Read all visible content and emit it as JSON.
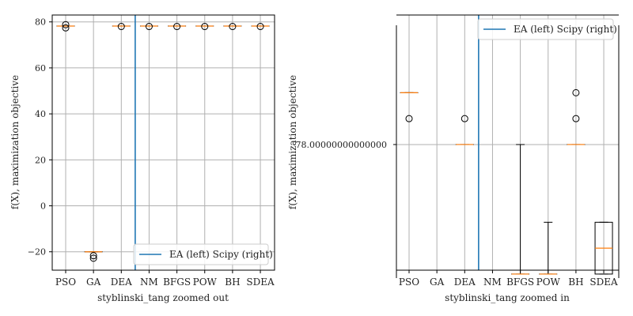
{
  "chart_data": [
    {
      "type": "box",
      "xlabel": "styblinski_tang zoomed out",
      "ylabel": "f(X), maximization objective",
      "ylim": [
        -28,
        83
      ],
      "yticks": [
        -20,
        0,
        20,
        40,
        60,
        80
      ],
      "ytick_labels": [
        "−20",
        "0",
        "20",
        "40",
        "60",
        "80"
      ],
      "grid": true,
      "legend": {
        "label": "EA (left) Scipy (right)",
        "position": "lower-right"
      },
      "divider_between": [
        "DEA",
        "NM"
      ],
      "categories": [
        "PSO",
        "GA",
        "DEA",
        "NM",
        "BFGS",
        "POW",
        "BH",
        "SDEA"
      ],
      "boxes": [
        {
          "name": "PSO",
          "median": 78.2,
          "q1": 78.2,
          "q3": 78.2,
          "whislo": 78.2,
          "whishi": 78.2,
          "fliers": [
            77.4,
            78.8
          ]
        },
        {
          "name": "GA",
          "median": -20.0,
          "q1": -20.0,
          "q3": -20.0,
          "whislo": -20.0,
          "whishi": -20.0,
          "fliers": [
            -21.7,
            -22.8
          ]
        },
        {
          "name": "DEA",
          "median": 78.2,
          "q1": 78.2,
          "q3": 78.2,
          "whislo": 78.2,
          "whishi": 78.2,
          "fliers": [
            78.0
          ]
        },
        {
          "name": "NM",
          "median": 78.2,
          "q1": 78.2,
          "q3": 78.2,
          "whislo": 78.2,
          "whishi": 78.2,
          "fliers": [
            78.0
          ]
        },
        {
          "name": "BFGS",
          "median": 78.2,
          "q1": 78.2,
          "q3": 78.2,
          "whislo": 78.2,
          "whishi": 78.2,
          "fliers": [
            78.0
          ]
        },
        {
          "name": "POW",
          "median": 78.2,
          "q1": 78.2,
          "q3": 78.2,
          "whislo": 78.2,
          "whishi": 78.2,
          "fliers": [
            78.0
          ]
        },
        {
          "name": "BH",
          "median": 78.2,
          "q1": 78.2,
          "q3": 78.2,
          "whislo": 78.2,
          "whishi": 78.2,
          "fliers": [
            78.0
          ]
        },
        {
          "name": "SDEA",
          "median": 78.2,
          "q1": 78.2,
          "q3": 78.2,
          "whislo": 78.2,
          "whishi": 78.2,
          "fliers": [
            78.0
          ]
        }
      ]
    },
    {
      "type": "box",
      "xlabel": "styblinski_tang zoomed in",
      "ylabel": "f(X), maximization objective",
      "y_units": "offset from 78.00000000000000",
      "ylim": [
        -4.85,
        5.0
      ],
      "yticks": [
        0
      ],
      "ytick_labels": [
        "78.00000000000000"
      ],
      "grid": true,
      "legend": {
        "label": "EA (left) Scipy (right)",
        "position": "top-right"
      },
      "divider_between": [
        "DEA",
        "NM"
      ],
      "categories": [
        "PSO",
        "GA",
        "DEA",
        "NM",
        "BFGS",
        "POW",
        "BH",
        "SDEA"
      ],
      "boxes": [
        {
          "name": "PSO",
          "median": 2.0,
          "q1": 2.0,
          "q3": 2.0,
          "whislo": 2.0,
          "whishi": 2.0,
          "fliers": [
            1.0
          ]
        },
        {
          "name": "GA",
          "median": null,
          "q1": null,
          "q3": null,
          "whislo": null,
          "whishi": null,
          "fliers": []
        },
        {
          "name": "DEA",
          "median": 0.0,
          "q1": 0.0,
          "q3": 0.0,
          "whislo": 0.0,
          "whishi": 0.0,
          "fliers": [
            1.0
          ]
        },
        {
          "name": "NM",
          "median": null,
          "q1": null,
          "q3": null,
          "whislo": null,
          "whishi": null,
          "fliers": []
        },
        {
          "name": "BFGS",
          "median": -5.0,
          "q1": -5.0,
          "q3": -5.0,
          "whislo": -5.0,
          "whishi": 0.0,
          "fliers": []
        },
        {
          "name": "POW",
          "median": -5.0,
          "q1": -5.0,
          "q3": -5.0,
          "whislo": -5.0,
          "whishi": -3.0,
          "fliers": []
        },
        {
          "name": "BH",
          "median": 0.0,
          "q1": 0.0,
          "q3": 0.0,
          "whislo": 0.0,
          "whishi": 0.0,
          "fliers": [
            1.0,
            2.0
          ]
        },
        {
          "name": "SDEA",
          "median": -4.0,
          "q1": -5.0,
          "q3": -3.0,
          "whislo": -5.0,
          "whishi": -3.0,
          "fliers": []
        }
      ]
    }
  ],
  "colors": {
    "box_line": "#000000",
    "median": "#ff7f0e",
    "divider": "#1f77b4",
    "grid": "#b0b0b0",
    "axis": "#000000"
  }
}
